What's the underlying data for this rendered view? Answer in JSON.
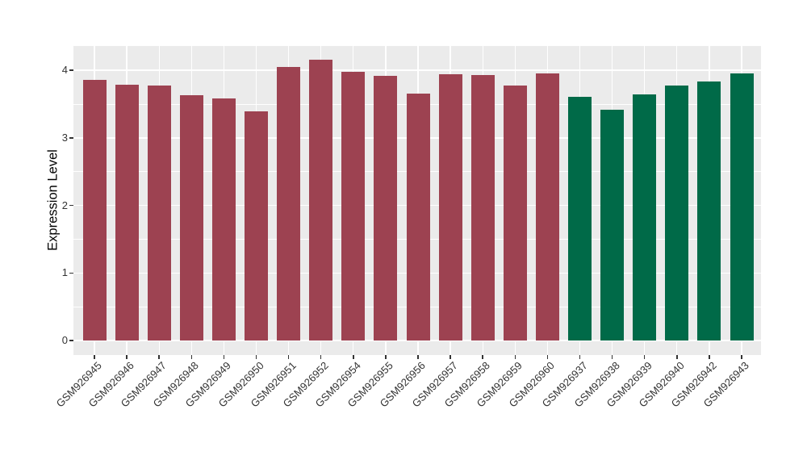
{
  "chart_data": {
    "type": "bar",
    "ylabel": "Expression Level",
    "categories": [
      "GSM926945",
      "GSM926946",
      "GSM926947",
      "GSM926948",
      "GSM926949",
      "GSM926950",
      "GSM926951",
      "GSM926952",
      "GSM926954",
      "GSM926955",
      "GSM926956",
      "GSM926957",
      "GSM926958",
      "GSM926959",
      "GSM926960",
      "GSM926937",
      "GSM926938",
      "GSM926939",
      "GSM926940",
      "GSM926942",
      "GSM926943"
    ],
    "values": [
      3.86,
      3.79,
      3.77,
      3.63,
      3.59,
      3.39,
      4.05,
      4.16,
      3.98,
      3.92,
      3.66,
      3.94,
      3.93,
      3.77,
      3.96,
      3.61,
      3.42,
      3.64,
      3.78,
      3.83,
      3.96
    ],
    "bar_colors": [
      "#9D4251",
      "#9D4251",
      "#9D4251",
      "#9D4251",
      "#9D4251",
      "#9D4251",
      "#9D4251",
      "#9D4251",
      "#9D4251",
      "#9D4251",
      "#9D4251",
      "#9D4251",
      "#9D4251",
      "#9D4251",
      "#9D4251",
      "#006A48",
      "#006A48",
      "#006A48",
      "#006A48",
      "#006A48",
      "#006A48"
    ],
    "series": [
      {
        "color": "#9D4251",
        "categories": [
          "GSM926945",
          "GSM926946",
          "GSM926947",
          "GSM926948",
          "GSM926949",
          "GSM926950",
          "GSM926951",
          "GSM926952",
          "GSM926954",
          "GSM926955",
          "GSM926956",
          "GSM926957",
          "GSM926958",
          "GSM926959",
          "GSM926960"
        ],
        "values": [
          3.86,
          3.79,
          3.77,
          3.63,
          3.59,
          3.39,
          4.05,
          4.16,
          3.98,
          3.92,
          3.66,
          3.94,
          3.93,
          3.77,
          3.96
        ]
      },
      {
        "color": "#006A48",
        "categories": [
          "GSM926937",
          "GSM926938",
          "GSM926939",
          "GSM926940",
          "GSM926942",
          "GSM926943"
        ],
        "values": [
          3.61,
          3.42,
          3.64,
          3.78,
          3.83,
          3.96
        ]
      }
    ],
    "ylim": [
      -0.215,
      4.361
    ],
    "yticks": [
      0,
      1,
      2,
      3,
      4
    ],
    "yticks_minor": [
      0.5,
      1.5,
      2.5,
      3.5
    ],
    "grid": "major-and-minor-white-on-gray",
    "legend": "none",
    "title": ""
  },
  "style": {
    "panel_bg": "#EBEBEB",
    "figure_bg": "#FFFFFF",
    "grid_major_color": "#FFFFFF",
    "grid_minor_color": "#FFFFFF",
    "tick_mark_color": "#333333",
    "tick_label_color": "#333333",
    "axis_title_color": "#000000"
  }
}
